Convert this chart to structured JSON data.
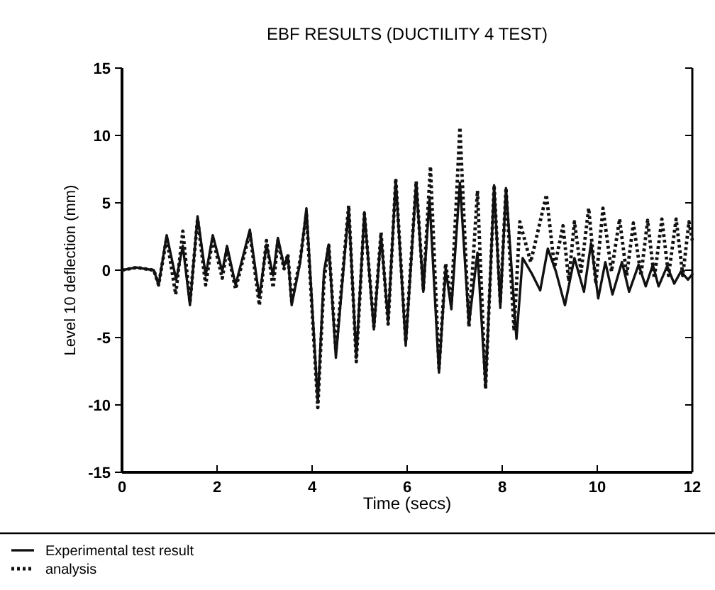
{
  "chart_data": {
    "type": "line",
    "title": "EBF RESULTS (DUCTILITY 4 TEST)",
    "xlabel": "Time (secs)",
    "ylabel": "Level 10 deflection (mm)",
    "xlim": [
      0,
      12
    ],
    "xticks": [
      0,
      2,
      4,
      6,
      8,
      10,
      12
    ],
    "ylim": [
      -15,
      15
    ],
    "yticks": [
      -15,
      -10,
      -5,
      0,
      5,
      10,
      15
    ],
    "grid": false,
    "legend": "bottom",
    "series": [
      {
        "name": "Experimental test result",
        "color": "#111111",
        "line_style": "solid",
        "x": [
          0,
          0.3,
          0.67,
          0.77,
          0.94,
          1.14,
          1.28,
          1.43,
          1.59,
          1.76,
          1.91,
          2.11,
          2.21,
          2.39,
          2.69,
          2.89,
          3.04,
          3.18,
          3.28,
          3.41,
          3.49,
          3.57,
          3.75,
          3.88,
          4.12,
          4.25,
          4.35,
          4.5,
          4.77,
          4.93,
          5.1,
          5.3,
          5.45,
          5.6,
          5.76,
          5.97,
          6.19,
          6.34,
          6.47,
          6.67,
          6.81,
          6.93,
          7.11,
          7.3,
          7.48,
          7.65,
          7.83,
          7.96,
          8.08,
          8.3,
          8.43,
          8.63,
          8.8,
          8.96,
          9.13,
          9.32,
          9.52,
          9.72,
          9.87,
          10.02,
          10.17,
          10.32,
          10.52,
          10.67,
          10.87,
          11.02,
          11.17,
          11.29,
          11.47,
          11.62,
          11.76,
          11.91,
          12
        ],
        "values": [
          0,
          0.2,
          0,
          -1.1,
          2.6,
          -0.7,
          1.8,
          -2.6,
          4.0,
          -0.4,
          2.6,
          -0.1,
          1.8,
          -1.1,
          3.0,
          -2.0,
          1.9,
          -0.4,
          2.4,
          0.3,
          1.1,
          -2.6,
          0.6,
          4.6,
          -9.8,
          -0.1,
          1.9,
          -6.5,
          4.6,
          -6.5,
          4.3,
          -4.4,
          2.6,
          -3.8,
          6.7,
          -5.6,
          6.5,
          -1.6,
          5.3,
          -7.6,
          0.1,
          -2.9,
          6.5,
          -4.0,
          1.3,
          -8.7,
          6.3,
          -2.8,
          6.1,
          -5.1,
          0.9,
          -0.3,
          -1.5,
          1.6,
          -0.1,
          -2.6,
          0.9,
          -1.6,
          2.0,
          -2.1,
          0.6,
          -1.8,
          0.6,
          -1.6,
          0.4,
          -1.2,
          0.4,
          -1.2,
          0.3,
          -1.0,
          -0.1,
          -0.7,
          -0.3
        ]
      },
      {
        "name": "analysis",
        "color": "#111111",
        "line_style": "dotted",
        "x": [
          0,
          0.3,
          0.67,
          0.77,
          0.94,
          1.13,
          1.28,
          1.43,
          1.59,
          1.76,
          1.91,
          2.11,
          2.21,
          2.39,
          2.69,
          2.89,
          3.04,
          3.18,
          3.28,
          3.41,
          3.49,
          3.57,
          3.75,
          3.88,
          4.12,
          4.25,
          4.35,
          4.5,
          4.77,
          4.93,
          5.1,
          5.3,
          5.45,
          5.6,
          5.76,
          5.97,
          6.19,
          6.34,
          6.49,
          6.67,
          6.81,
          6.93,
          7.11,
          7.3,
          7.48,
          7.65,
          7.83,
          7.96,
          8.08,
          8.25,
          8.37,
          8.6,
          8.93,
          9.1,
          9.28,
          9.4,
          9.52,
          9.66,
          9.82,
          9.97,
          10.12,
          10.3,
          10.47,
          10.62,
          10.76,
          10.92,
          11.06,
          11.2,
          11.36,
          11.5,
          11.66,
          11.8,
          11.93,
          12
        ],
        "values": [
          0,
          0.2,
          0,
          -1.1,
          2.4,
          -1.8,
          2.9,
          -2.4,
          3.8,
          -1.1,
          2.4,
          -0.6,
          1.6,
          -1.4,
          2.8,
          -2.6,
          2.2,
          -1.3,
          2.2,
          0.1,
          1.2,
          -2.3,
          0.8,
          4.2,
          -10.2,
          -0.8,
          1.9,
          -6.0,
          4.8,
          -6.8,
          4.2,
          -4.2,
          2.8,
          -4.0,
          6.8,
          -5.3,
          6.6,
          -1.4,
          7.7,
          -7.3,
          0.5,
          -2.4,
          10.6,
          -4.2,
          5.9,
          -8.8,
          6.3,
          -2.4,
          6.1,
          -4.5,
          3.6,
          0.6,
          5.6,
          0.2,
          3.3,
          -0.8,
          3.6,
          -0.1,
          4.6,
          -1.0,
          4.6,
          -0.1,
          3.8,
          -0.4,
          3.5,
          -0.4,
          3.7,
          -0.6,
          3.8,
          -0.4,
          3.8,
          -0.4,
          3.6,
          2.2
        ]
      }
    ]
  }
}
